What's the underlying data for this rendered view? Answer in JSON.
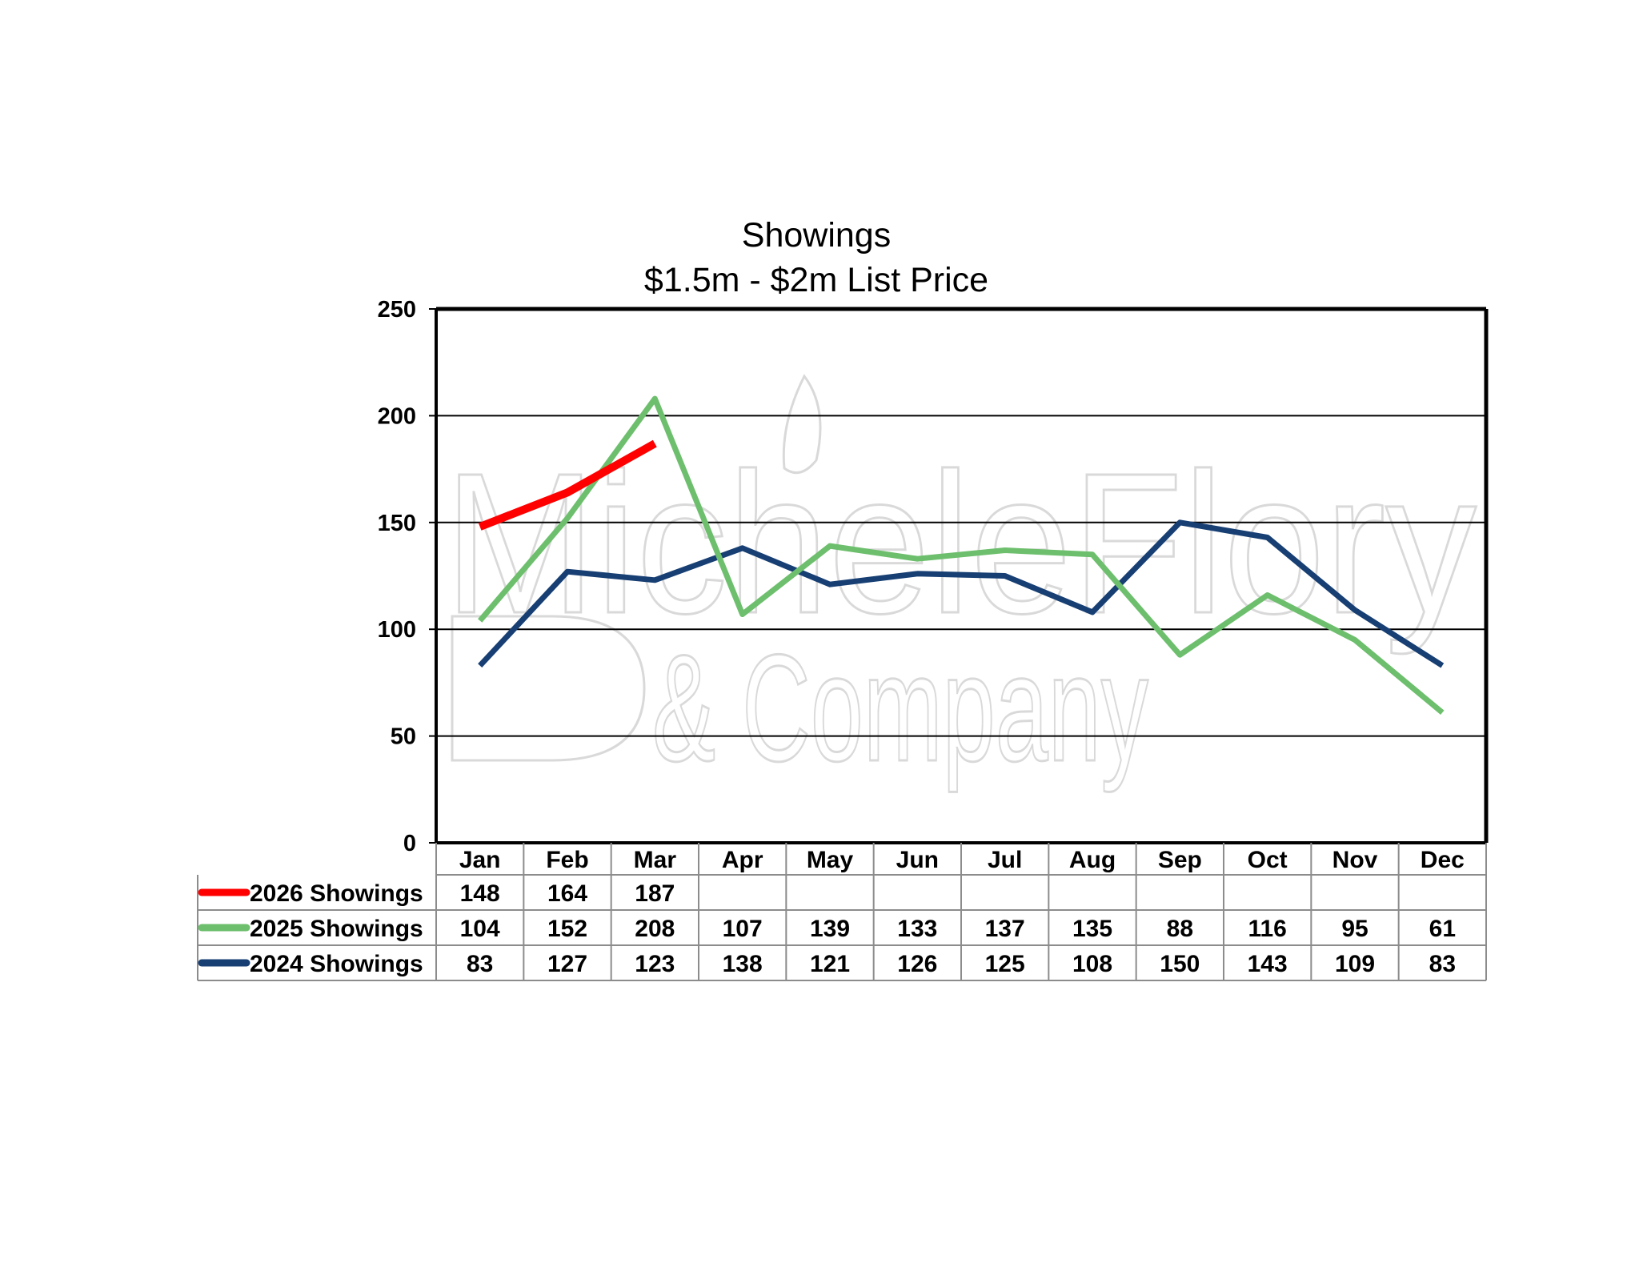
{
  "chart_data": {
    "type": "line",
    "title": "Showings",
    "subtitle": "$1.5m - $2m List Price",
    "xlabel": "",
    "ylabel": "",
    "ylim": [
      0,
      250
    ],
    "yticks": [
      0,
      50,
      100,
      150,
      200,
      250
    ],
    "grid": true,
    "legend": "data-table-below",
    "categories": [
      "Jan",
      "Feb",
      "Mar",
      "Apr",
      "May",
      "Jun",
      "Jul",
      "Aug",
      "Sep",
      "Oct",
      "Nov",
      "Dec"
    ],
    "series": [
      {
        "name": "2026 Showings",
        "color": "#ff0000",
        "values": [
          148,
          164,
          187,
          null,
          null,
          null,
          null,
          null,
          null,
          null,
          null,
          null
        ]
      },
      {
        "name": "2025 Showings",
        "color": "#6dbf6d",
        "values": [
          104,
          152,
          208,
          107,
          139,
          133,
          137,
          135,
          88,
          116,
          95,
          61
        ]
      },
      {
        "name": "2024 Showings",
        "color": "#173f73",
        "values": [
          83,
          127,
          123,
          138,
          121,
          126,
          125,
          108,
          150,
          143,
          109,
          83
        ]
      }
    ],
    "watermark": {
      "line1": "MicheleFlory",
      "line2": "& Company"
    }
  }
}
